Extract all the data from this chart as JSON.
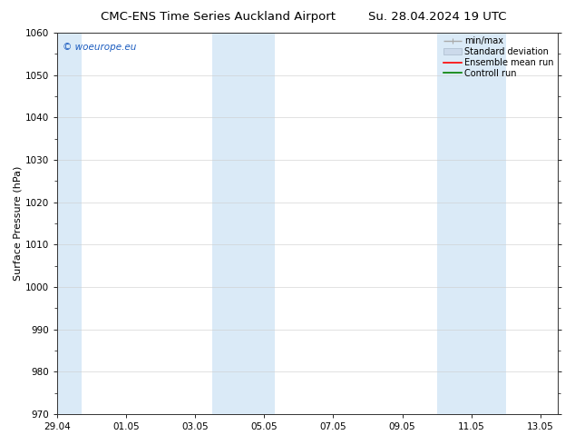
{
  "title_left": "CMC-ENS Time Series Auckland Airport",
  "title_right": "Su. 28.04.2024 19 UTC",
  "ylabel": "Surface Pressure (hPa)",
  "ylim": [
    970,
    1060
  ],
  "yticks": [
    970,
    980,
    990,
    1000,
    1010,
    1020,
    1030,
    1040,
    1050,
    1060
  ],
  "xtick_labels": [
    "29.04",
    "01.05",
    "03.05",
    "05.05",
    "07.05",
    "09.05",
    "11.05",
    "13.05"
  ],
  "xtick_positions": [
    0,
    2,
    4,
    6,
    8,
    10,
    12,
    14
  ],
  "xlim": [
    0,
    14.5
  ],
  "shaded_regions": [
    {
      "start": 0.0,
      "end": 0.7
    },
    {
      "start": 4.5,
      "end": 6.3
    },
    {
      "start": 11.0,
      "end": 13.0
    }
  ],
  "shaded_color": "#daeaf7",
  "watermark_text": "© woeurope.eu",
  "watermark_color": "#1a5bbf",
  "title_fontsize": 9.5,
  "axis_fontsize": 8,
  "tick_fontsize": 7.5,
  "background_color": "#ffffff",
  "grid_color": "#cccccc",
  "legend_fontsize": 7,
  "minmax_color": "#aaaaaa",
  "stddev_color": "#ccdaeb",
  "ensemble_color": "red",
  "control_color": "green"
}
